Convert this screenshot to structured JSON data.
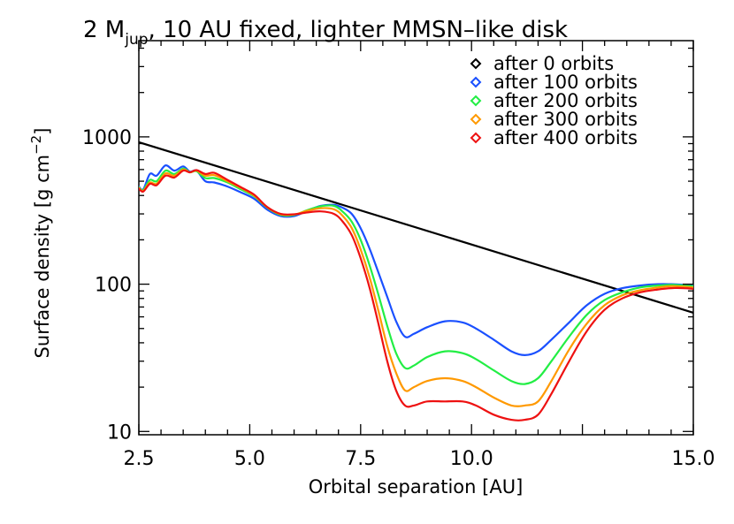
{
  "chart_data": {
    "type": "line",
    "title": {
      "pre": "2 M",
      "sub": "jup",
      "post": ", 10 AU fixed, lighter MMSN–like disk"
    },
    "xlabel": "Orbital separation [AU]",
    "ylabel": {
      "pre": "Surface density [g cm",
      "sup": "−2",
      "post": "]"
    },
    "xlim": [
      2.5,
      15.0
    ],
    "ylim": [
      9.5,
      4500
    ],
    "yscale": "log",
    "xticks": [
      {
        "value": 2.5,
        "label": "2.5"
      },
      {
        "value": 5.0,
        "label": "5.0"
      },
      {
        "value": 7.5,
        "label": "7.5"
      },
      {
        "value": 10.0,
        "label": "10.0"
      },
      {
        "value": 15.0,
        "label": "15.0"
      }
    ],
    "yticks": [
      {
        "value": 10,
        "label": "10"
      },
      {
        "value": 100,
        "label": "100"
      },
      {
        "value": 1000,
        "label": "1000"
      }
    ],
    "legend_position": "top-right",
    "series": [
      {
        "name": "after 0 orbits",
        "color": "#000000",
        "x": [
          2.5,
          15.0
        ],
        "y": [
          920,
          64
        ]
      },
      {
        "name": "after 100 orbits",
        "color": "#1a50ff",
        "x": [
          2.5,
          2.6,
          2.75,
          2.9,
          3.1,
          3.3,
          3.5,
          3.65,
          3.8,
          4.0,
          4.2,
          4.5,
          4.8,
          5.1,
          5.4,
          5.7,
          6.0,
          6.3,
          6.6,
          6.9,
          7.1,
          7.3,
          7.5,
          7.7,
          7.9,
          8.1,
          8.3,
          8.5,
          8.7,
          9.0,
          9.4,
          9.8,
          10.1,
          10.5,
          10.9,
          11.2,
          11.5,
          11.8,
          12.2,
          12.6,
          13.0,
          13.4,
          13.8,
          14.2,
          14.5,
          14.8,
          15.0
        ],
        "y": [
          460,
          440,
          560,
          545,
          640,
          590,
          630,
          580,
          590,
          500,
          490,
          460,
          420,
          380,
          320,
          290,
          290,
          315,
          340,
          345,
          330,
          300,
          240,
          175,
          120,
          82,
          56,
          44,
          46,
          51,
          56,
          55,
          50,
          42,
          35,
          33,
          35,
          42,
          55,
          72,
          86,
          94,
          98,
          100,
          100,
          99,
          98
        ]
      },
      {
        "name": "after 200 orbits",
        "color": "#22ee44",
        "x": [
          2.5,
          2.6,
          2.75,
          2.9,
          3.1,
          3.3,
          3.5,
          3.65,
          3.8,
          4.0,
          4.2,
          4.5,
          4.8,
          5.1,
          5.4,
          5.7,
          6.0,
          6.3,
          6.6,
          6.9,
          7.1,
          7.3,
          7.5,
          7.7,
          7.9,
          8.1,
          8.3,
          8.5,
          8.7,
          9.0,
          9.4,
          9.8,
          10.1,
          10.5,
          10.9,
          11.2,
          11.5,
          11.8,
          12.2,
          12.6,
          13.0,
          13.4,
          13.8,
          14.2,
          14.5,
          14.8,
          15.0
        ],
        "y": [
          455,
          435,
          510,
          500,
          590,
          560,
          610,
          575,
          585,
          525,
          525,
          490,
          440,
          395,
          330,
          295,
          295,
          318,
          338,
          340,
          310,
          265,
          200,
          135,
          85,
          52,
          34,
          27,
          28,
          32,
          35,
          34,
          31,
          26,
          22,
          21,
          23,
          30,
          44,
          62,
          78,
          88,
          95,
          98,
          99,
          98,
          97
        ]
      },
      {
        "name": "after 300 orbits",
        "color": "#ff9900",
        "x": [
          2.5,
          2.6,
          2.75,
          2.9,
          3.1,
          3.3,
          3.5,
          3.65,
          3.8,
          4.0,
          4.2,
          4.5,
          4.8,
          5.1,
          5.4,
          5.7,
          6.0,
          6.3,
          6.6,
          6.9,
          7.1,
          7.3,
          7.5,
          7.7,
          7.9,
          8.1,
          8.3,
          8.5,
          8.7,
          9.0,
          9.4,
          9.8,
          10.1,
          10.5,
          10.9,
          11.2,
          11.5,
          11.8,
          12.2,
          12.6,
          13.0,
          13.4,
          13.8,
          14.2,
          14.5,
          14.8,
          15.0
        ],
        "y": [
          450,
          430,
          490,
          480,
          565,
          545,
          600,
          575,
          590,
          545,
          550,
          500,
          450,
          400,
          332,
          298,
          297,
          315,
          328,
          322,
          290,
          240,
          172,
          112,
          66,
          38,
          25,
          19,
          20,
          22,
          23,
          22,
          20,
          17,
          15,
          15,
          16,
          22,
          36,
          54,
          72,
          84,
          91,
          95,
          97,
          96,
          95
        ]
      },
      {
        "name": "after 400 orbits",
        "color": "#ee1111",
        "x": [
          2.5,
          2.6,
          2.75,
          2.9,
          3.1,
          3.3,
          3.5,
          3.65,
          3.8,
          4.0,
          4.2,
          4.5,
          4.8,
          5.1,
          5.4,
          5.7,
          6.0,
          6.3,
          6.6,
          6.9,
          7.1,
          7.3,
          7.5,
          7.7,
          7.9,
          8.1,
          8.3,
          8.5,
          8.7,
          9.0,
          9.4,
          9.8,
          10.1,
          10.5,
          10.9,
          11.2,
          11.5,
          11.8,
          12.2,
          12.6,
          13.0,
          13.4,
          13.8,
          14.2,
          14.5,
          14.8,
          15.0
        ],
        "y": [
          445,
          425,
          480,
          470,
          545,
          530,
          590,
          575,
          595,
          560,
          570,
          510,
          455,
          405,
          333,
          300,
          298,
          307,
          312,
          300,
          265,
          215,
          150,
          95,
          54,
          30,
          19,
          15,
          15,
          16,
          16,
          16,
          15,
          13,
          12,
          12,
          13,
          18,
          30,
          48,
          67,
          80,
          88,
          92,
          94,
          94,
          93
        ]
      }
    ]
  }
}
